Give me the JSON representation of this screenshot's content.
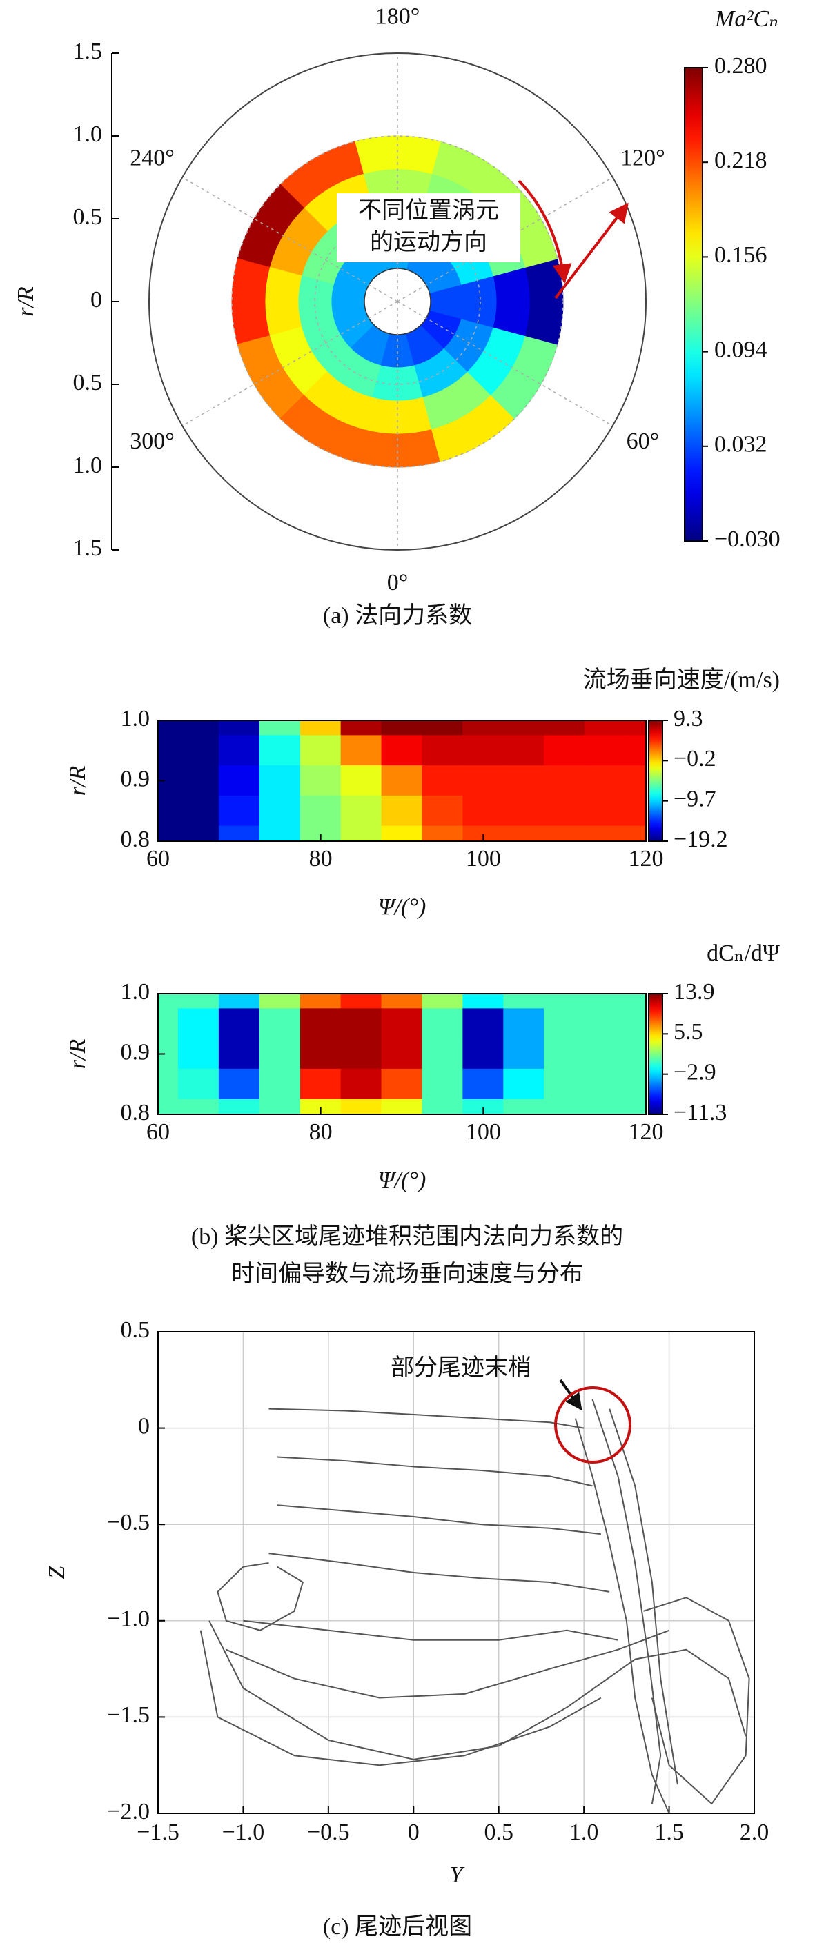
{
  "chart_data": [
    {
      "type": "polar-heatmap",
      "theta": [
        0,
        30,
        60,
        90,
        120,
        150,
        180,
        210,
        240,
        270,
        300,
        330
      ],
      "r": [
        0.3,
        0.5,
        0.7,
        0.9
      ],
      "z": [
        [
          0.04,
          0.03,
          0.02,
          0.03,
          0.05,
          0.05,
          0.06,
          0.06,
          0.06,
          0.06,
          0.06,
          0.05
        ],
        [
          0.1,
          0.07,
          0.05,
          0.03,
          0.08,
          0.1,
          0.11,
          0.12,
          0.12,
          0.11,
          0.11,
          0.11
        ],
        [
          0.17,
          0.13,
          0.09,
          0.0,
          0.12,
          0.13,
          0.14,
          0.17,
          0.19,
          0.17,
          0.16,
          0.17
        ],
        [
          0.21,
          0.17,
          0.12,
          -0.02,
          0.14,
          0.14,
          0.16,
          0.22,
          0.27,
          0.23,
          0.2,
          0.21
        ]
      ],
      "colormap": "jet",
      "ylim": [
        -1.5,
        1.5
      ],
      "yticks": [
        1.5,
        {
          "value": 1,
          "label": "1.0"
        },
        0.5,
        0,
        {
          "value": -0.5,
          "label": "0.5"
        },
        {
          "value": -1,
          "label": "1.0"
        },
        {
          "value": -1.5,
          "label": "1.5"
        }
      ],
      "ylabel": "r/R",
      "thetaticks": [
        {
          "value": 0,
          "label": "0°"
        },
        {
          "value": 60,
          "label": "60°"
        },
        {
          "value": 120,
          "label": "120°"
        },
        {
          "value": 180,
          "label": "180°"
        },
        {
          "value": 240,
          "label": "240°"
        },
        {
          "value": 300,
          "label": "300°"
        }
      ],
      "clim": [
        -0.03,
        0.28
      ],
      "cticks": [
        {
          "value": 0.28,
          "label": "0.280"
        },
        {
          "value": 0.218,
          "label": "0.218"
        },
        {
          "value": 0.156,
          "label": "0.156"
        },
        {
          "value": 0.094,
          "label": "0.094"
        },
        {
          "value": 0.032,
          "label": "0.032"
        },
        {
          "value": -0.03,
          "label": "−0.030"
        }
      ],
      "colorbar_title": "Ma²Cₙ",
      "annotation": [
        "不同位置涡元",
        "的运动方向"
      ],
      "caption": "(a) 法向力系数"
    },
    {
      "type": "heatmap",
      "title": "流场垂向速度/(m/s)",
      "x": [
        60,
        65,
        70,
        75,
        80,
        85,
        90,
        95,
        100,
        105,
        110,
        115,
        120
      ],
      "y": [
        1,
        0.95,
        0.9,
        0.85,
        0.8
      ],
      "z": [
        [
          -19,
          -19,
          -18,
          -6,
          0,
          8,
          9,
          9,
          8,
          8,
          8,
          7,
          7
        ],
        [
          -19,
          -19,
          -17,
          -8,
          -3,
          2,
          6,
          7,
          7,
          7,
          6,
          6,
          6
        ],
        [
          -19,
          -19,
          -16,
          -9,
          -4,
          -2,
          2,
          5,
          5,
          5,
          5,
          5,
          5
        ],
        [
          -19,
          -19,
          -15,
          -9,
          -5,
          -3,
          0,
          4,
          5,
          5,
          5,
          5,
          5
        ],
        [
          -19,
          -19,
          -14,
          -9,
          -5,
          -3,
          -1,
          3,
          4,
          4,
          4,
          4,
          4
        ]
      ],
      "colormap": "jet",
      "xlim": [
        60,
        120
      ],
      "xticks": [
        60,
        80,
        100,
        120
      ],
      "ylim": [
        0.8,
        1
      ],
      "yticks": [
        0.8,
        0.9,
        {
          "value": 1,
          "label": "1.0"
        }
      ],
      "xlabel": "Ψ/(°)",
      "ylabel": "r/R",
      "clim": [
        -19.2,
        9.3
      ],
      "cticks": [
        9.3,
        {
          "value": -0.2,
          "label": "−0.2"
        },
        {
          "value": -9.7,
          "label": "−9.7"
        },
        {
          "value": -19.2,
          "label": "−19.2"
        }
      ]
    },
    {
      "type": "heatmap",
      "title": "dCₙ/dΨ",
      "x": [
        60,
        65,
        70,
        75,
        80,
        85,
        90,
        95,
        100,
        105,
        110,
        115,
        120
      ],
      "y": [
        1,
        0.95,
        0.9,
        0.85,
        0.8
      ],
      "z": [
        [
          0,
          0,
          -3,
          2,
          8,
          10,
          8,
          2,
          -2,
          0,
          0,
          0,
          0
        ],
        [
          0,
          -2,
          -10,
          0,
          13,
          13,
          12,
          0,
          -10,
          -4,
          0,
          0,
          0
        ],
        [
          0,
          -2,
          -10,
          0,
          13,
          13,
          12,
          0,
          -10,
          -4,
          0,
          0,
          0
        ],
        [
          0,
          -1,
          -6,
          0,
          10,
          12,
          9,
          0,
          -6,
          -2,
          0,
          0,
          0
        ],
        [
          0,
          0,
          -1,
          0,
          4,
          5,
          4,
          0,
          -1,
          0,
          0,
          0,
          0
        ]
      ],
      "colormap": "jet",
      "xlim": [
        60,
        120
      ],
      "xticks": [
        60,
        80,
        100,
        120
      ],
      "ylim": [
        0.8,
        1
      ],
      "yticks": [
        0.8,
        0.9,
        {
          "value": 1,
          "label": "1.0"
        }
      ],
      "xlabel": "Ψ/(°)",
      "ylabel": "r/R",
      "clim": [
        -11.3,
        13.9
      ],
      "cticks": [
        13.9,
        5.5,
        {
          "value": -2.9,
          "label": "−2.9"
        },
        {
          "value": -11.3,
          "label": "−11.3"
        }
      ],
      "caption": [
        "(b) 桨尖区域尾迹堆积范围内法向力系数的",
        "时间偏导数与流场垂向速度与分布"
      ]
    },
    {
      "type": "line",
      "xlim": [
        -1.5,
        2
      ],
      "xticks": [
        {
          "value": -1.5,
          "label": "−1.5"
        },
        {
          "value": -1,
          "label": "−1.0"
        },
        {
          "value": -0.5,
          "label": "−0.5"
        },
        0,
        0.5,
        {
          "value": 1,
          "label": "1.0"
        },
        1.5,
        {
          "value": 2,
          "label": "2.0"
        }
      ],
      "ylim": [
        -2,
        0.5
      ],
      "yticks": [
        0.5,
        0,
        {
          "value": -0.5,
          "label": "−0.5"
        },
        {
          "value": -1,
          "label": "−1.0"
        },
        {
          "value": -1.5,
          "label": "−1.5"
        },
        {
          "value": -2,
          "label": "−2.0"
        }
      ],
      "xlabel": "Y",
      "ylabel": "Z",
      "grid": true,
      "annotation": "部分尾迹末梢",
      "caption": "(c) 尾迹后视图",
      "series": [
        {
          "color": "#555555",
          "x": [
            -0.85,
            -0.4,
            0,
            0.4,
            0.8,
            1.0
          ],
          "values": [
            0.1,
            0.09,
            0.07,
            0.05,
            0.03,
            0.0
          ]
        },
        {
          "color": "#555555",
          "x": [
            -0.8,
            -0.4,
            0,
            0.4,
            0.8,
            1.05
          ],
          "values": [
            -0.15,
            -0.17,
            -0.2,
            -0.22,
            -0.25,
            -0.3
          ]
        },
        {
          "color": "#555555",
          "x": [
            -0.8,
            -0.4,
            0,
            0.4,
            0.8,
            1.1
          ],
          "values": [
            -0.4,
            -0.43,
            -0.46,
            -0.5,
            -0.52,
            -0.55
          ]
        },
        {
          "color": "#555555",
          "x": [
            -0.85,
            -0.4,
            0,
            0.4,
            0.8,
            1.15
          ],
          "values": [
            -0.65,
            -0.7,
            -0.75,
            -0.78,
            -0.8,
            -0.85
          ]
        },
        {
          "color": "#555555",
          "x": [
            -1.0,
            -0.5,
            0,
            0.5,
            0.9,
            1.2
          ],
          "values": [
            -1.0,
            -1.05,
            -1.1,
            -1.1,
            -1.05,
            -1.1
          ]
        },
        {
          "color": "#555555",
          "x": [
            -1.1,
            -0.7,
            -0.2,
            0.3,
            0.8,
            1.2,
            1.5
          ],
          "values": [
            -1.15,
            -1.3,
            -1.4,
            -1.38,
            -1.25,
            -1.15,
            -1.05
          ]
        },
        {
          "color": "#555555",
          "x": [
            -1.2,
            -1.0,
            -0.5,
            0,
            0.5,
            0.9,
            1.3,
            1.6,
            1.85,
            1.95
          ],
          "values": [
            -1.0,
            -1.35,
            -1.62,
            -1.72,
            -1.65,
            -1.45,
            -1.2,
            -1.15,
            -1.3,
            -1.6
          ]
        },
        {
          "color": "#555555",
          "x": [
            -0.85,
            -1.0,
            -1.15,
            -1.1,
            -0.9,
            -0.7,
            -0.65,
            -0.8
          ],
          "values": [
            -0.7,
            -0.72,
            -0.85,
            -1.0,
            -1.05,
            -0.95,
            -0.8,
            -0.72
          ]
        },
        {
          "color": "#555555",
          "x": [
            0.95,
            1.05,
            1.15,
            1.25,
            1.3,
            1.4,
            1.5
          ],
          "values": [
            0.05,
            -0.25,
            -0.6,
            -1.0,
            -1.4,
            -1.8,
            -2.0
          ]
        },
        {
          "color": "#555555",
          "x": [
            1.05,
            1.2,
            1.3,
            1.38,
            1.45,
            1.4
          ],
          "values": [
            0.15,
            -0.25,
            -0.7,
            -1.2,
            -1.7,
            -1.95
          ]
        },
        {
          "color": "#555555",
          "x": [
            1.15,
            1.3,
            1.4,
            1.45,
            1.55
          ],
          "values": [
            0.1,
            -0.3,
            -0.8,
            -1.3,
            -1.85
          ]
        },
        {
          "color": "#555555",
          "x": [
            1.35,
            1.6,
            1.85,
            1.97,
            1.95,
            1.75,
            1.5,
            1.4
          ],
          "values": [
            -0.95,
            -0.88,
            -1.0,
            -1.3,
            -1.7,
            -1.95,
            -1.75,
            -1.4
          ]
        },
        {
          "color": "#555555",
          "x": [
            -1.25,
            -1.15,
            -0.7,
            -0.2,
            0.3,
            0.8,
            1.1
          ],
          "values": [
            -1.05,
            -1.5,
            -1.7,
            -1.75,
            -1.7,
            -1.55,
            -1.4
          ]
        }
      ]
    }
  ]
}
